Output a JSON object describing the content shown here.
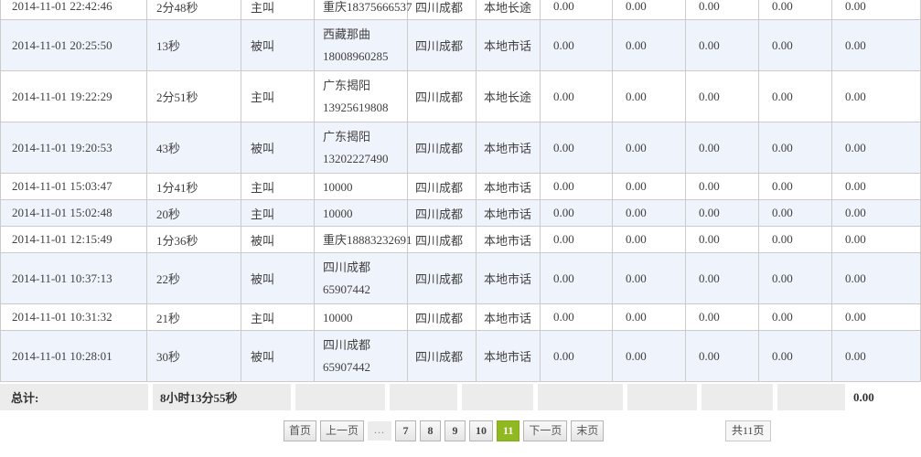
{
  "table": {
    "rows": [
      {
        "datetime": "2014-11-01 22:42:46",
        "duration": "2分48秒",
        "direction": "主叫",
        "number_lines": [
          "重庆18375666537"
        ],
        "location": "四川成都",
        "call_type": "本地长途",
        "fees": [
          "0.00",
          "0.00",
          "0.00",
          "0.00",
          "0.00"
        ]
      },
      {
        "datetime": "2014-11-01 20:25:50",
        "duration": "13秒",
        "direction": "被叫",
        "number_lines": [
          "西藏那曲",
          "18008960285"
        ],
        "location": "四川成都",
        "call_type": "本地市话",
        "fees": [
          "0.00",
          "0.00",
          "0.00",
          "0.00",
          "0.00"
        ]
      },
      {
        "datetime": "2014-11-01 19:22:29",
        "duration": "2分51秒",
        "direction": "主叫",
        "number_lines": [
          "广东揭阳",
          "13925619808"
        ],
        "location": "四川成都",
        "call_type": "本地长途",
        "fees": [
          "0.00",
          "0.00",
          "0.00",
          "0.00",
          "0.00"
        ]
      },
      {
        "datetime": "2014-11-01 19:20:53",
        "duration": "43秒",
        "direction": "被叫",
        "number_lines": [
          "广东揭阳",
          "13202227490"
        ],
        "location": "四川成都",
        "call_type": "本地市话",
        "fees": [
          "0.00",
          "0.00",
          "0.00",
          "0.00",
          "0.00"
        ]
      },
      {
        "datetime": "2014-11-01 15:03:47",
        "duration": "1分41秒",
        "direction": "主叫",
        "number_lines": [
          "10000"
        ],
        "location": "四川成都",
        "call_type": "本地市话",
        "fees": [
          "0.00",
          "0.00",
          "0.00",
          "0.00",
          "0.00"
        ]
      },
      {
        "datetime": "2014-11-01 15:02:48",
        "duration": "20秒",
        "direction": "主叫",
        "number_lines": [
          "10000"
        ],
        "location": "四川成都",
        "call_type": "本地市话",
        "fees": [
          "0.00",
          "0.00",
          "0.00",
          "0.00",
          "0.00"
        ]
      },
      {
        "datetime": "2014-11-01 12:15:49",
        "duration": "1分36秒",
        "direction": "被叫",
        "number_lines": [
          "重庆18883232691"
        ],
        "location": "四川成都",
        "call_type": "本地市话",
        "fees": [
          "0.00",
          "0.00",
          "0.00",
          "0.00",
          "0.00"
        ]
      },
      {
        "datetime": "2014-11-01 10:37:13",
        "duration": "22秒",
        "direction": "被叫",
        "number_lines": [
          "四川成都",
          "65907442"
        ],
        "location": "四川成都",
        "call_type": "本地市话",
        "fees": [
          "0.00",
          "0.00",
          "0.00",
          "0.00",
          "0.00"
        ]
      },
      {
        "datetime": "2014-11-01 10:31:32",
        "duration": "21秒",
        "direction": "主叫",
        "number_lines": [
          "10000"
        ],
        "location": "四川成都",
        "call_type": "本地市话",
        "fees": [
          "0.00",
          "0.00",
          "0.00",
          "0.00",
          "0.00"
        ]
      },
      {
        "datetime": "2014-11-01 10:28:01",
        "duration": "30秒",
        "direction": "被叫",
        "number_lines": [
          "四川成都",
          "65907442"
        ],
        "location": "四川成都",
        "call_type": "本地市话",
        "fees": [
          "0.00",
          "0.00",
          "0.00",
          "0.00",
          "0.00"
        ]
      }
    ]
  },
  "totals": {
    "label": "总计:",
    "duration": "8小时13分55秒",
    "fee": "0.00"
  },
  "pagination": {
    "first_label": "首页",
    "prev_label": "上一页",
    "ellipsis": "...",
    "pages": [
      "7",
      "8",
      "9",
      "10",
      "11"
    ],
    "active_page": "11",
    "next_label": "下一页",
    "last_label": "末页",
    "total_pages_label": "共11页"
  },
  "colors": {
    "active_page_bg": "#8fb821",
    "alt_row_bg": "#eff3fb",
    "totals_bg": "#ececec",
    "table_border": "#cbcbcb"
  }
}
